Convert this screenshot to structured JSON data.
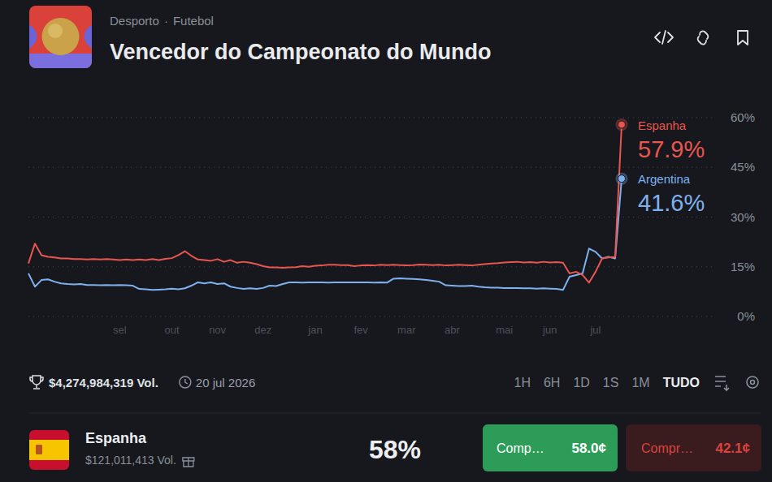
{
  "header": {
    "category": "Desporto",
    "separator": "·",
    "subcategory": "Futebol",
    "title": "Vencedor do Campeonato do Mundo"
  },
  "chart_data": {
    "type": "line",
    "grid": true,
    "data_labels": true,
    "categories": [
      null,
      null,
      null,
      null,
      null,
      null,
      null,
      null,
      null,
      null,
      null,
      null,
      null,
      null,
      "sel",
      null,
      null,
      null,
      null,
      null,
      null,
      null,
      "out",
      null,
      null,
      null,
      null,
      null,
      null,
      "nov",
      null,
      null,
      null,
      null,
      null,
      null,
      "dez",
      null,
      null,
      null,
      null,
      null,
      null,
      null,
      "jan",
      null,
      null,
      null,
      null,
      null,
      null,
      "fev",
      null,
      null,
      null,
      null,
      null,
      null,
      "mar",
      null,
      null,
      null,
      null,
      null,
      null,
      "abr",
      null,
      null,
      null,
      null,
      null,
      null,
      null,
      "mai",
      null,
      null,
      null,
      null,
      null,
      null,
      "jun",
      null,
      null,
      null,
      null,
      null,
      null,
      "jul",
      null,
      null,
      null,
      null
    ],
    "ylim": [
      0,
      60
    ],
    "yticks": [
      {
        "value": 0,
        "label": "0%"
      },
      {
        "value": 15,
        "label": "15%"
      },
      {
        "value": 30,
        "label": "30%"
      },
      {
        "value": 45,
        "label": "45%"
      },
      {
        "value": 60,
        "label": "60%"
      }
    ],
    "series": [
      {
        "name": "Espanha",
        "color": "#e8564f",
        "values": [
          16,
          22,
          18.5,
          18,
          17.8,
          17.5,
          17.5,
          17.3,
          17.3,
          17.2,
          17.3,
          17.2,
          17.3,
          17.2,
          17,
          17.2,
          17,
          17.2,
          17,
          17.3,
          17,
          17.4,
          17.6,
          18.5,
          19.7,
          18.3,
          17.2,
          17,
          16.8,
          17.3,
          16.5,
          17,
          16.2,
          16.5,
          16.2,
          15.8,
          15.2,
          14.8,
          14.8,
          14.7,
          14.8,
          14.9,
          15.2,
          15,
          15.3,
          15.4,
          15.6,
          15.6,
          15.5,
          15.5,
          15.2,
          15.4,
          15.5,
          15.4,
          15.6,
          15.5,
          15.6,
          15.5,
          15.4,
          15.5,
          15.7,
          15.6,
          15.5,
          15.6,
          15.4,
          15.5,
          15.6,
          15.5,
          15.4,
          15.6,
          15.8,
          16,
          16.1,
          16.3,
          16.4,
          16.5,
          16.3,
          16.4,
          16.2,
          16.5,
          16.3,
          16.4,
          16.2,
          13,
          13.5,
          12.5,
          10.2,
          13.5,
          17.5,
          17.8,
          18,
          57.9
        ],
        "value_labels": [
          null,
          null,
          null,
          null,
          null,
          null,
          null,
          null,
          null,
          null,
          null,
          null,
          null,
          null,
          null,
          null,
          null,
          null,
          null,
          null,
          null,
          null,
          null,
          null,
          null,
          null,
          null,
          null,
          null,
          null,
          null,
          null,
          null,
          null,
          null,
          null,
          null,
          null,
          null,
          null,
          null,
          null,
          null,
          null,
          null,
          null,
          null,
          null,
          null,
          null,
          null,
          null,
          null,
          null,
          null,
          null,
          null,
          null,
          null,
          null,
          null,
          null,
          null,
          null,
          null,
          null,
          null,
          null,
          null,
          null,
          null,
          null,
          null,
          null,
          null,
          null,
          null,
          null,
          null,
          null,
          null,
          null,
          null,
          null,
          null,
          null,
          null,
          null,
          null,
          null,
          null,
          "57.9%"
        ]
      },
      {
        "name": "Argentina",
        "color": "#7fb1f0",
        "values": [
          13,
          9,
          11,
          11.2,
          10.5,
          10,
          9.8,
          9.7,
          9.8,
          9.5,
          9.5,
          9.4,
          9.5,
          9.4,
          9.5,
          9.4,
          9.3,
          8.3,
          8.2,
          8,
          8.1,
          8.2,
          8.4,
          8.2,
          8.5,
          9.3,
          10.3,
          10,
          10.3,
          9.8,
          10,
          9,
          8.6,
          8.3,
          8.5,
          8.3,
          8.6,
          9.3,
          9.2,
          9.8,
          10.3,
          10.3,
          10.2,
          10.3,
          10.3,
          10.3,
          10.2,
          10.3,
          10.3,
          10.3,
          10.3,
          10.3,
          10.3,
          10.2,
          10.3,
          10.2,
          11.4,
          11.5,
          11.4,
          11.3,
          11.2,
          11,
          10.8,
          10.5,
          9.4,
          9.3,
          9.2,
          9.2,
          9.3,
          9,
          8.8,
          8.7,
          8.7,
          8.6,
          8.6,
          8.6,
          8.5,
          8.5,
          8.4,
          8.5,
          8.4,
          8.3,
          8,
          12,
          12.5,
          13,
          20.5,
          19.5,
          17.5,
          18,
          17.5,
          41.6
        ],
        "value_labels": [
          null,
          null,
          null,
          null,
          null,
          null,
          null,
          null,
          null,
          null,
          null,
          null,
          null,
          null,
          null,
          null,
          null,
          null,
          null,
          null,
          null,
          null,
          null,
          null,
          null,
          null,
          null,
          null,
          null,
          null,
          null,
          null,
          null,
          null,
          null,
          null,
          null,
          null,
          null,
          null,
          null,
          null,
          null,
          null,
          null,
          null,
          null,
          null,
          null,
          null,
          null,
          null,
          null,
          null,
          null,
          null,
          null,
          null,
          null,
          null,
          null,
          null,
          null,
          null,
          null,
          null,
          null,
          null,
          null,
          null,
          null,
          null,
          null,
          null,
          null,
          null,
          null,
          null,
          null,
          null,
          null,
          null,
          null,
          null,
          null,
          null,
          null,
          null,
          null,
          null,
          null,
          "41.6%"
        ]
      }
    ]
  },
  "footer": {
    "volume": "$4,274,984,319 Vol.",
    "end_date": "20 jul 2026",
    "ranges": [
      "1H",
      "6H",
      "1D",
      "1S",
      "1M",
      "TUDO"
    ],
    "active_range": "TUDO"
  },
  "outcome": {
    "name": "Espanha",
    "volume": "$121,011,413 Vol.",
    "chance": "58%",
    "buy_yes": {
      "label": "Comp…",
      "price": "58.0¢"
    },
    "buy_no": {
      "label": "Compr…",
      "price": "42.1¢"
    }
  }
}
